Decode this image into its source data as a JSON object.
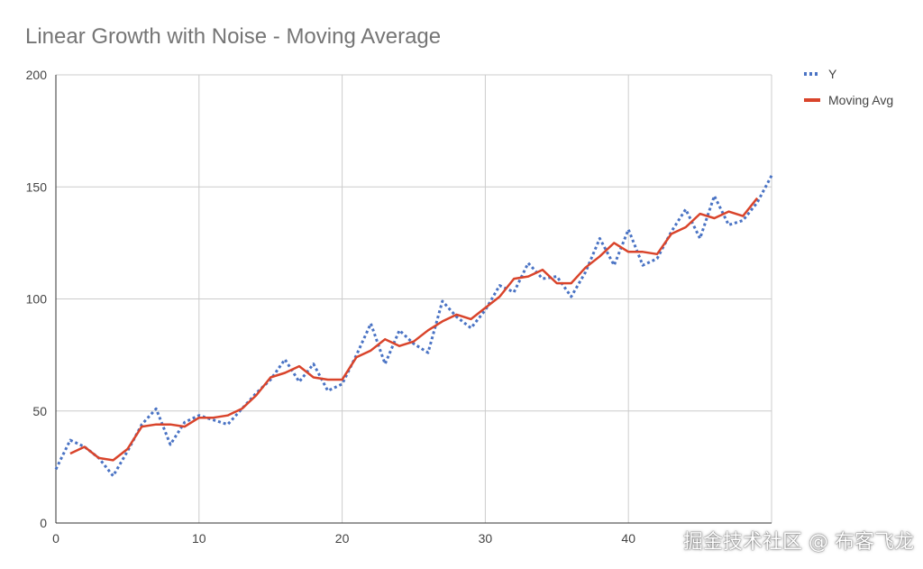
{
  "chart_data": {
    "type": "line",
    "title": "Linear Growth with Noise - Moving Average",
    "xlabel": "",
    "ylabel": "",
    "xlim": [
      0,
      50
    ],
    "ylim": [
      0,
      200
    ],
    "x_ticks": [
      0,
      10,
      20,
      30,
      40
    ],
    "y_ticks": [
      0,
      50,
      100,
      150,
      200
    ],
    "grid": true,
    "legend_position": "right",
    "series": [
      {
        "name": "Y",
        "style": "dotted",
        "color": "#4a73c4",
        "x": [
          0,
          1,
          2,
          3,
          4,
          5,
          6,
          7,
          8,
          9,
          10,
          11,
          12,
          13,
          14,
          15,
          16,
          17,
          18,
          19,
          20,
          21,
          22,
          23,
          24,
          25,
          26,
          27,
          28,
          29,
          30,
          31,
          32,
          33,
          34,
          35,
          36,
          37,
          38,
          39,
          40,
          41,
          42,
          43,
          44,
          45,
          46,
          47,
          48,
          49,
          50
        ],
        "values": [
          24,
          37,
          34,
          29,
          21,
          32,
          44,
          51,
          35,
          45,
          48,
          46,
          44,
          51,
          58,
          64,
          73,
          63,
          71,
          59,
          62,
          75,
          89,
          71,
          86,
          80,
          76,
          99,
          92,
          87,
          95,
          106,
          103,
          116,
          109,
          110,
          101,
          112,
          127,
          115,
          131,
          115,
          118,
          130,
          140,
          127,
          146,
          133,
          135,
          143,
          155
        ]
      },
      {
        "name": "Moving Avg",
        "style": "solid",
        "color": "#d9442b",
        "x": [
          1,
          2,
          3,
          4,
          5,
          6,
          7,
          8,
          9,
          10,
          11,
          12,
          13,
          14,
          15,
          16,
          17,
          18,
          19,
          20,
          21,
          22,
          23,
          24,
          25,
          26,
          27,
          28,
          29,
          30,
          31,
          32,
          33,
          34,
          35,
          36,
          37,
          38,
          39,
          40,
          41,
          42,
          43,
          44,
          45,
          46,
          47,
          48,
          49
        ],
        "values": [
          31,
          34,
          29,
          28,
          33,
          43,
          44,
          44,
          43,
          47,
          47,
          48,
          51,
          57,
          65,
          67,
          70,
          65,
          64,
          64,
          74,
          77,
          82,
          79,
          81,
          86,
          90,
          93,
          91,
          96,
          101,
          109,
          110,
          113,
          107,
          107,
          114,
          119,
          125,
          121,
          121,
          120,
          129,
          132,
          138,
          136,
          139,
          137,
          145
        ]
      }
    ]
  },
  "watermark": "掘金技术社区 @ 布客飞龙"
}
